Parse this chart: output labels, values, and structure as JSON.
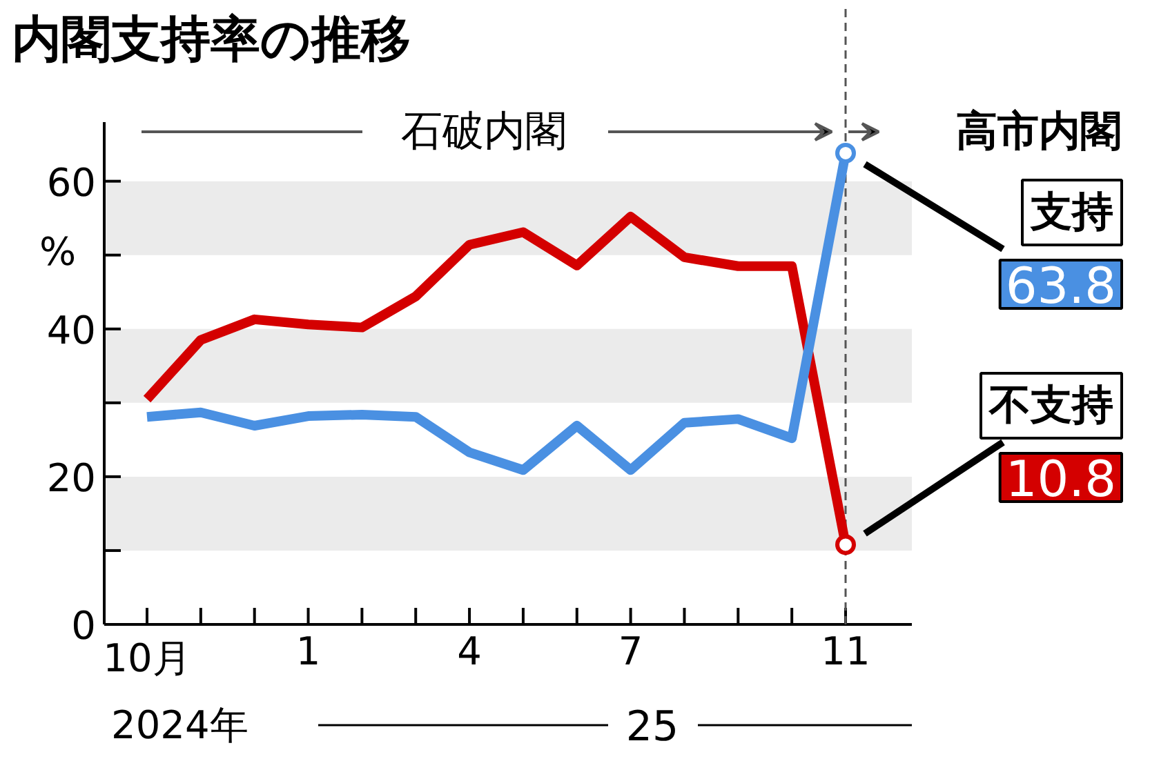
{
  "chart_data": {
    "type": "line",
    "title": "内閣支持率の推移",
    "ylabel": "%",
    "categories": [
      "10月",
      null,
      null,
      "1",
      null,
      null,
      "4",
      null,
      null,
      "7",
      null,
      null,
      null,
      "11"
    ],
    "series": [
      {
        "name": "不支持",
        "color": "#d40000",
        "values": [
          30.5,
          38.5,
          41.3,
          40.6,
          40.2,
          44.4,
          51.4,
          53.1,
          48.6,
          55.2,
          49.7,
          48.5,
          48.5,
          10.8
        ],
        "value_labels": [
          null,
          null,
          null,
          null,
          null,
          null,
          null,
          null,
          null,
          null,
          null,
          null,
          null,
          "10.8"
        ]
      },
      {
        "name": "支持",
        "color": "#4a90e2",
        "values": [
          28.1,
          28.7,
          26.9,
          28.2,
          28.4,
          28.1,
          23.3,
          20.9,
          26.9,
          20.9,
          27.3,
          27.8,
          25.2,
          63.8
        ],
        "value_labels": [
          null,
          null,
          null,
          null,
          null,
          null,
          null,
          null,
          null,
          null,
          null,
          null,
          null,
          "63.8"
        ]
      }
    ],
    "ylim": [
      0,
      68
    ],
    "yticks": [
      0,
      {
        "value": 10,
        "label": null
      },
      20,
      {
        "value": 30,
        "label": null
      },
      40,
      {
        "value": 50,
        "label": null
      },
      60
    ],
    "bands": [
      {
        "axis": "y",
        "from": 10,
        "to": 20,
        "color": "#ebebeb"
      },
      {
        "axis": "y",
        "from": 30,
        "to": 40,
        "color": "#ebebeb"
      },
      {
        "axis": "y",
        "from": 50,
        "to": 60,
        "color": "#ebebeb"
      }
    ],
    "ref_lines": [
      {
        "axis": "x",
        "value": "11",
        "color": "#555555",
        "line_style": "dashed"
      }
    ],
    "annotations": [
      "石破内閣",
      "高市内閣",
      "2024年",
      "25"
    ],
    "grid": false,
    "line_style": "solid"
  }
}
